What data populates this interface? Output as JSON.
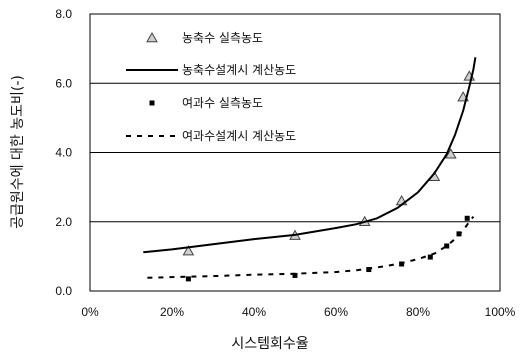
{
  "chart_data": {
    "type": "scatter",
    "xlabel": "시스템회수율",
    "ylabel": "공급원수에 대한 농도비(-)",
    "xlim": [
      0,
      100
    ],
    "ylim": [
      0,
      8
    ],
    "x_ticks": [
      "0%",
      "20%",
      "40%",
      "60%",
      "80%",
      "100%"
    ],
    "y_ticks": [
      "0.0",
      "2.0",
      "4.0",
      "6.0",
      "8.0"
    ],
    "grid": "horizontal",
    "legend_position": "top-left",
    "series": [
      {
        "name": "농축수 실측농도",
        "kind": "marker-triangle",
        "color": "#555555",
        "x": [
          24,
          50,
          67,
          76,
          84,
          88,
          91,
          92.5
        ],
        "y": [
          1.15,
          1.6,
          2.0,
          2.6,
          3.3,
          3.95,
          5.6,
          6.2
        ]
      },
      {
        "name": "농축수설계시 계산농도",
        "kind": "solid-line",
        "color": "#000000",
        "x": [
          13,
          20,
          30,
          40,
          50,
          60,
          65,
          70,
          75,
          80,
          84,
          87,
          89,
          91,
          92.5,
          93.5,
          94
        ],
        "y": [
          1.12,
          1.2,
          1.35,
          1.5,
          1.62,
          1.82,
          1.93,
          2.1,
          2.4,
          2.85,
          3.4,
          3.95,
          4.5,
          5.2,
          5.9,
          6.4,
          6.75
        ]
      },
      {
        "name": "여과수 실측농도",
        "kind": "marker-square",
        "color": "#000000",
        "x": [
          24,
          50,
          68,
          76,
          83,
          87,
          90,
          92
        ],
        "y": [
          0.35,
          0.45,
          0.62,
          0.78,
          0.98,
          1.3,
          1.65,
          2.1
        ]
      },
      {
        "name": "여과수설계시 계산농도",
        "kind": "dashed-line",
        "color": "#000000",
        "x": [
          14,
          20,
          30,
          40,
          50,
          60,
          65,
          70,
          75,
          80,
          84,
          87,
          89,
          91,
          92.5,
          93.5
        ],
        "y": [
          0.38,
          0.4,
          0.43,
          0.47,
          0.5,
          0.55,
          0.6,
          0.68,
          0.78,
          0.92,
          1.08,
          1.3,
          1.5,
          1.75,
          2.0,
          2.15
        ]
      }
    ]
  }
}
